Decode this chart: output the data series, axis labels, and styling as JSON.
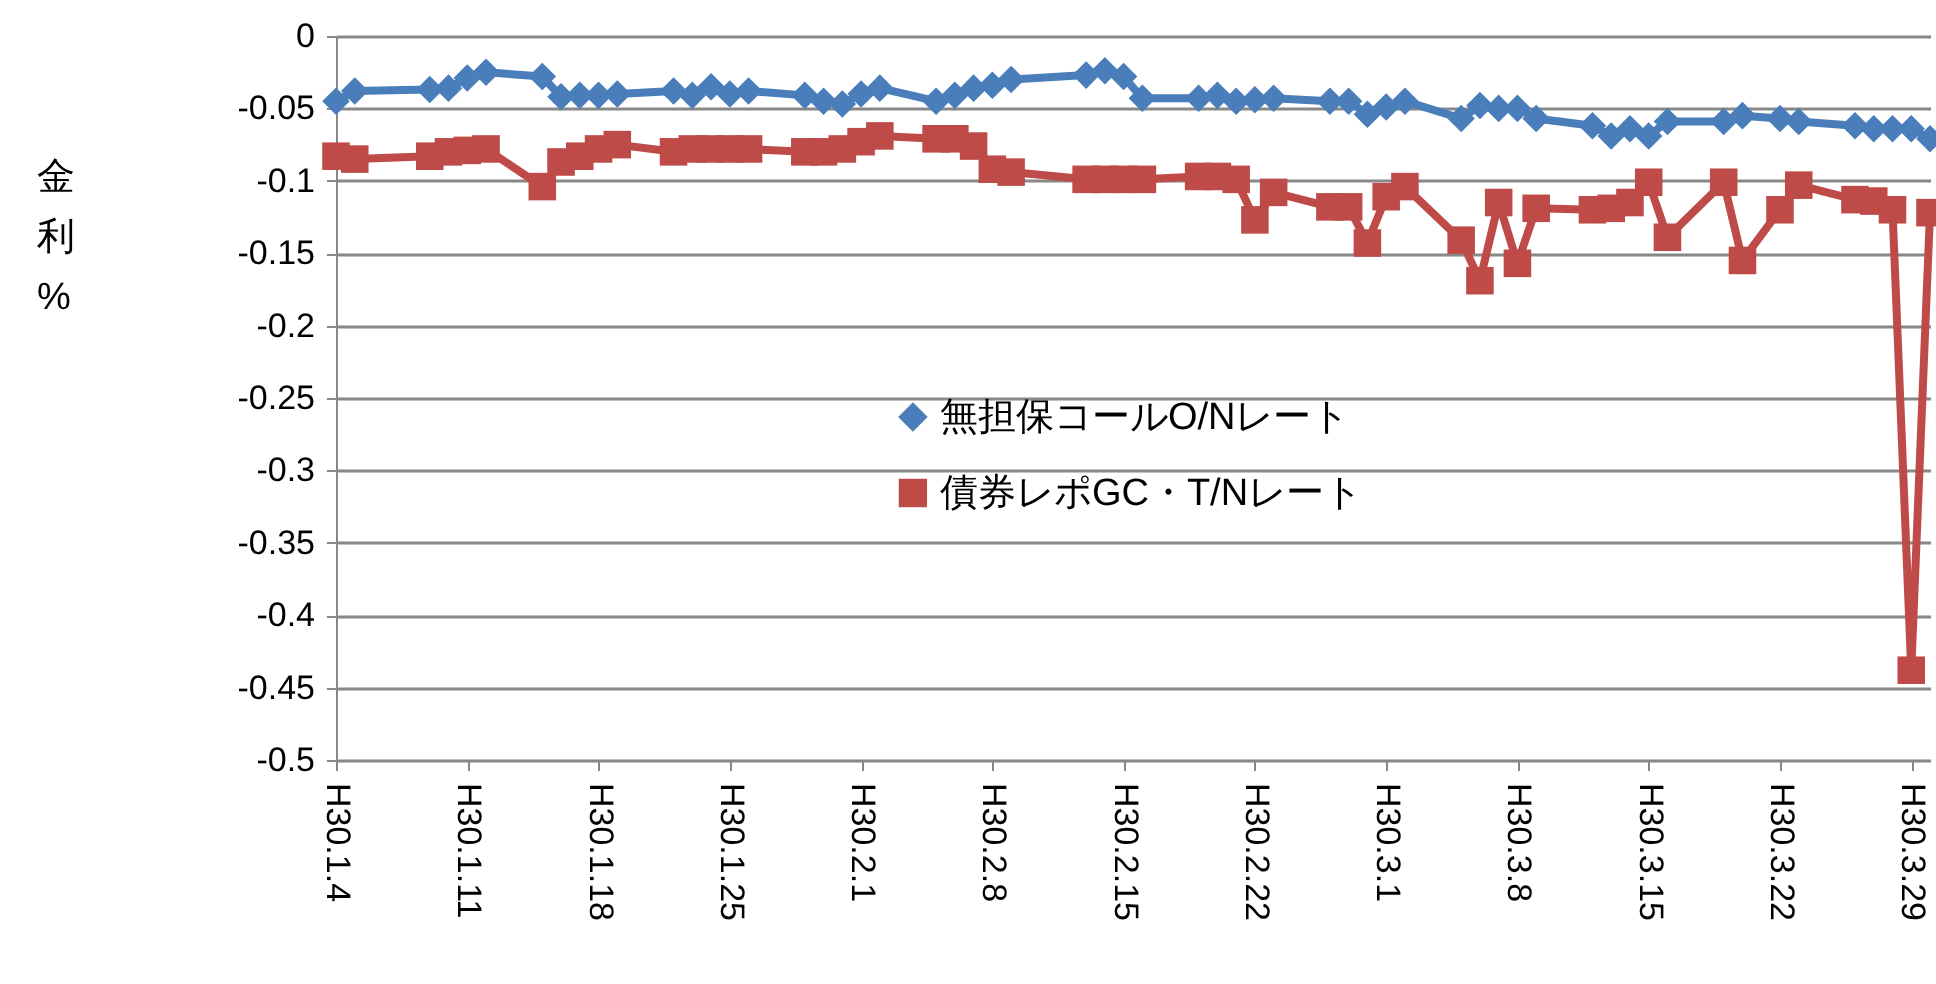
{
  "chart_data": {
    "type": "line",
    "ylabel": "金利%",
    "x": [
      "--01-04",
      "--01-05",
      "--01-09",
      "--01-10",
      "--01-11",
      "--01-12",
      "--01-15",
      "--01-16",
      "--01-17",
      "--01-18",
      "--01-19",
      "--01-22",
      "--01-23",
      "--01-24",
      "--01-25",
      "--01-26",
      "--01-29",
      "--01-30",
      "--01-31",
      "--02-01",
      "--02-02",
      "--02-05",
      "--02-06",
      "--02-07",
      "--02-08",
      "--02-09",
      "--02-13",
      "--02-14",
      "--02-15",
      "--02-16",
      "--02-19",
      "--02-20",
      "--02-21",
      "--02-22",
      "--02-23",
      "--02-26",
      "--02-27",
      "--02-28",
      "--03-01",
      "--03-02",
      "--03-05",
      "--03-06",
      "--03-07",
      "--03-08",
      "--03-09",
      "--03-12",
      "--03-13",
      "--03-14",
      "--03-15",
      "--03-16",
      "--03-19",
      "--03-20",
      "--03-22",
      "--03-23",
      "--03-26",
      "--03-27",
      "--03-28",
      "--03-29",
      "--03-30"
    ],
    "series": [
      {
        "name": "無担保コールO/Nレート",
        "color": "#4a7ebb",
        "marker": "diamond",
        "values": [
          -0.045,
          -0.038,
          -0.037,
          -0.036,
          -0.029,
          -0.025,
          -0.028,
          -0.042,
          -0.041,
          -0.041,
          -0.04,
          -0.038,
          -0.041,
          -0.035,
          -0.04,
          -0.038,
          -0.041,
          -0.045,
          -0.047,
          -0.04,
          -0.036,
          -0.045,
          -0.041,
          -0.036,
          -0.034,
          -0.03,
          -0.027,
          -0.024,
          -0.028,
          -0.043,
          -0.043,
          -0.041,
          -0.045,
          -0.044,
          -0.043,
          -0.045,
          -0.045,
          -0.054,
          -0.049,
          -0.045,
          -0.057,
          -0.048,
          -0.05,
          -0.05,
          -0.057,
          -0.062,
          -0.069,
          -0.064,
          -0.069,
          -0.059,
          -0.059,
          -0.055,
          -0.057,
          -0.059,
          -0.062,
          -0.064,
          -0.064,
          -0.064,
          -0.071
        ]
      },
      {
        "name": "債券レポGC・T/Nレート",
        "color": "#be4b48",
        "marker": "square",
        "values": [
          -0.083,
          -0.085,
          -0.083,
          -0.08,
          -0.079,
          -0.078,
          -0.104,
          -0.087,
          -0.083,
          -0.078,
          -0.075,
          -0.08,
          -0.078,
          -0.078,
          -0.078,
          -0.078,
          -0.08,
          -0.08,
          -0.078,
          -0.073,
          -0.069,
          -0.071,
          -0.071,
          -0.076,
          -0.092,
          -0.094,
          -0.099,
          -0.099,
          -0.099,
          -0.099,
          -0.097,
          -0.097,
          -0.099,
          -0.127,
          -0.108,
          -0.118,
          -0.118,
          -0.143,
          -0.111,
          -0.104,
          -0.141,
          -0.169,
          -0.115,
          -0.157,
          -0.119,
          -0.12,
          -0.119,
          -0.115,
          -0.101,
          -0.139,
          -0.101,
          -0.155,
          -0.12,
          -0.103,
          -0.113,
          -0.114,
          -0.12,
          -0.438,
          -0.122
        ]
      }
    ],
    "xlim": [
      "--01-04",
      "--03-30"
    ],
    "xticks": [
      {
        "value": "--01-04",
        "label": "H30.1.4"
      },
      {
        "value": "--01-11",
        "label": "H30.1.11"
      },
      {
        "value": "--01-18",
        "label": "H30.1.18"
      },
      {
        "value": "--01-25",
        "label": "H30.1.25"
      },
      {
        "value": "--02-01",
        "label": "H30.2.1"
      },
      {
        "value": "--02-08",
        "label": "H30.2.8"
      },
      {
        "value": "--02-15",
        "label": "H30.2.15"
      },
      {
        "value": "--02-22",
        "label": "H30.2.22"
      },
      {
        "value": "--03-01",
        "label": "H30.3.1"
      },
      {
        "value": "--03-08",
        "label": "H30.3.8"
      },
      {
        "value": "--03-15",
        "label": "H30.3.15"
      },
      {
        "value": "--03-22",
        "label": "H30.3.22"
      },
      {
        "value": "--03-29",
        "label": "H30.3.29"
      }
    ],
    "ylim": [
      -0.5,
      0
    ],
    "yticks": [
      0,
      -0.05,
      -0.1,
      -0.15,
      -0.2,
      -0.25,
      -0.3,
      -0.35,
      -0.4,
      -0.45,
      -0.5
    ],
    "grid": "y",
    "legend": "center",
    "line_style": "solid"
  }
}
